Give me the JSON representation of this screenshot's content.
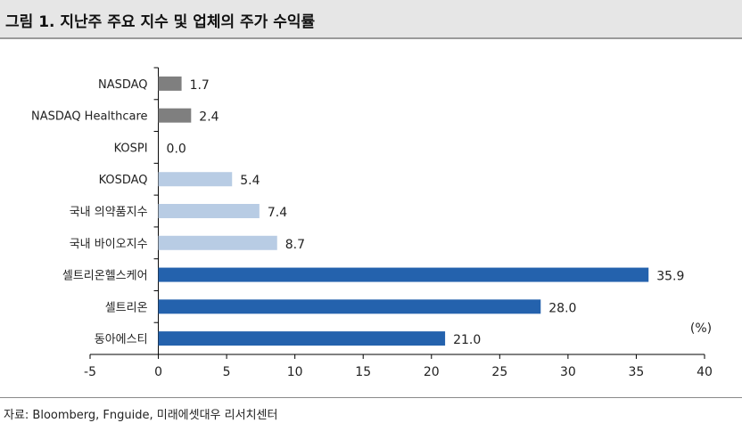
{
  "header": {
    "title": "그림 1. 지난주 주요 지수 및 업체의 주가 수익률"
  },
  "footer": {
    "source": "자료: Bloomberg, Fnguide, 미래에셋대우 리서치센터"
  },
  "colors": {
    "index_bar": "#7f7f7f",
    "domestic_bar": "#b8cce4",
    "company_bar": "#2462ad"
  },
  "chart_data": {
    "type": "bar",
    "orientation": "horizontal",
    "categories": [
      "NASDAQ",
      "NASDAQ Healthcare",
      "KOSPI",
      "KOSDAQ",
      "국내 의약품지수",
      "국내 바이오지수",
      "셀트리온헬스케어",
      "셀트리온",
      "동아에스티"
    ],
    "values": [
      1.7,
      2.4,
      0.0,
      5.4,
      7.4,
      8.7,
      35.9,
      28.0,
      21.0
    ],
    "value_labels": [
      "1.7",
      "2.4",
      "0.0",
      "5.4",
      "7.4",
      "8.7",
      "35.9",
      "28.0",
      "21.0"
    ],
    "bar_colors": [
      "#7f7f7f",
      "#7f7f7f",
      "#7f7f7f",
      "#b8cce4",
      "#b8cce4",
      "#b8cce4",
      "#2462ad",
      "#2462ad",
      "#2462ad"
    ],
    "xlim": [
      -5,
      40
    ],
    "xticks": [
      -5,
      0,
      5,
      10,
      15,
      20,
      25,
      30,
      35,
      40
    ],
    "xtick_labels": [
      "-5",
      "0",
      "5",
      "10",
      "15",
      "20",
      "25",
      "30",
      "35",
      "40"
    ],
    "unit_label": "(%)",
    "grid": false,
    "legend": "none"
  }
}
